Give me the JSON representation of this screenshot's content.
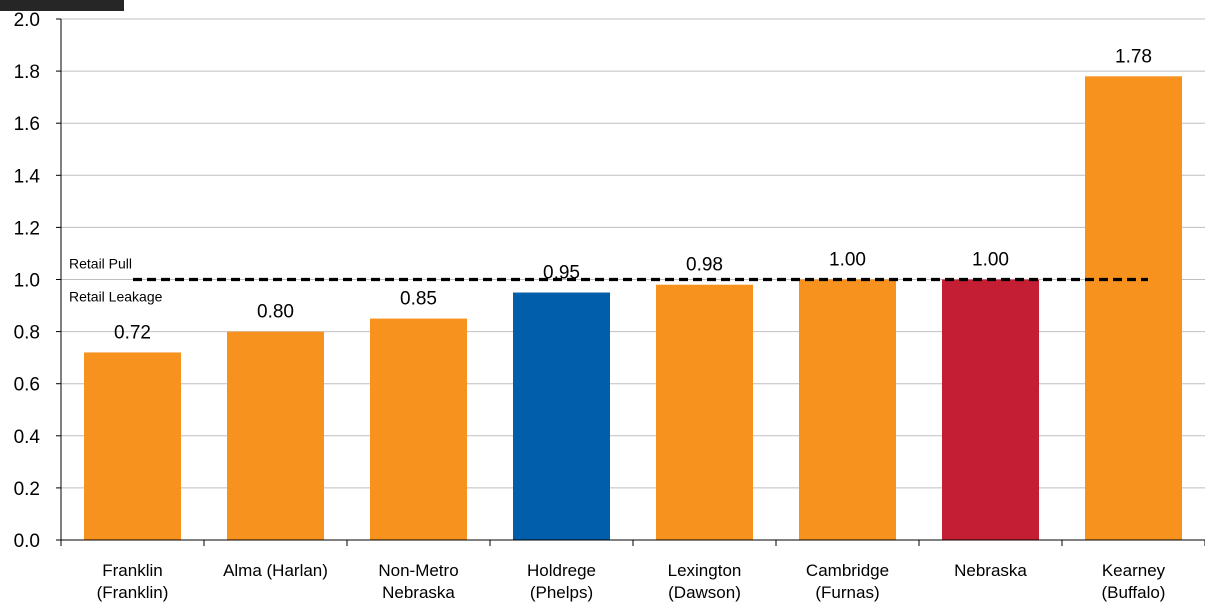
{
  "chart_data": {
    "type": "bar",
    "title": "",
    "xlabel": "",
    "ylabel": "",
    "ylim": [
      0,
      2.0
    ],
    "yticks": [
      "0.0",
      "0.2",
      "0.4",
      "0.6",
      "0.8",
      "1.0",
      "1.2",
      "1.4",
      "1.6",
      "1.8",
      "2.0"
    ],
    "grid": true,
    "categories": [
      [
        "Franklin",
        "(Franklin)"
      ],
      [
        "Alma (Harlan)"
      ],
      [
        "Non-Metro",
        "Nebraska"
      ],
      [
        "Holdrege",
        "(Phelps)"
      ],
      [
        "Lexington",
        "(Dawson)"
      ],
      [
        "Cambridge",
        "(Furnas)"
      ],
      [
        "Nebraska"
      ],
      [
        "Kearney",
        "(Buffalo)"
      ]
    ],
    "values": [
      0.72,
      0.8,
      0.85,
      0.95,
      0.98,
      1.0,
      1.0,
      1.78
    ],
    "data_labels": [
      "0.72",
      "0.80",
      "0.85",
      "0.95",
      "0.98",
      "1.00",
      "1.00",
      "1.78"
    ],
    "bar_colors": [
      "#f7921e",
      "#f7921e",
      "#f7921e",
      "#005eab",
      "#f7921e",
      "#f7921e",
      "#c41e34",
      "#f7921e"
    ],
    "reference_line": {
      "value": 1.0,
      "style": "dashed",
      "color": "#000000",
      "label_above": "Retail Pull",
      "label_below": "Retail Leakage"
    }
  }
}
